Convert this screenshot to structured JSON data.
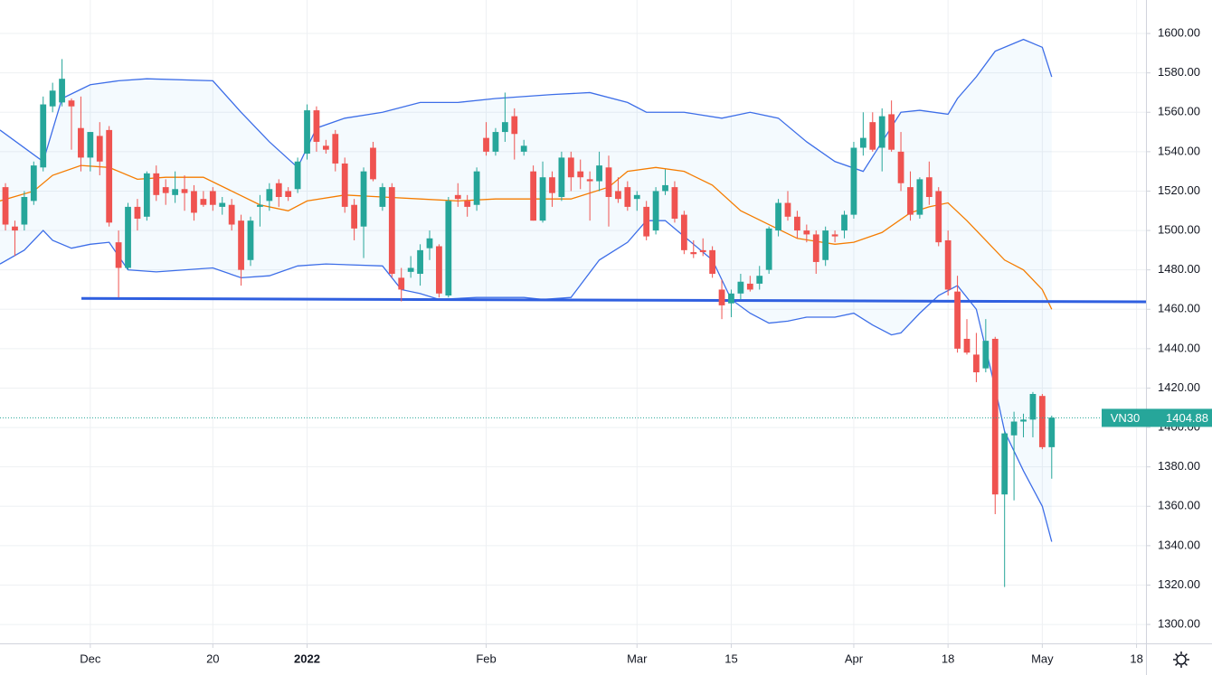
{
  "chart_data": {
    "type": "candlestick",
    "xlim": [
      -0.58,
      121.0
    ],
    "xticks": [
      {
        "value": 9,
        "label": "Dec"
      },
      {
        "value": 22,
        "label": "20"
      },
      {
        "value": 32,
        "label": "2022"
      },
      {
        "value": 51,
        "label": "Feb"
      },
      {
        "value": 67,
        "label": "Mar"
      },
      {
        "value": 77,
        "label": "15"
      },
      {
        "value": 90,
        "label": "Apr"
      },
      {
        "value": 100,
        "label": "18"
      },
      {
        "value": 110,
        "label": "May"
      },
      {
        "value": 120,
        "label": "18"
      }
    ],
    "ylim": [
      1290.4,
      1617
    ],
    "yticks": [
      {
        "value": 1300,
        "label": "1300.00"
      },
      {
        "value": 1320,
        "label": "1320.00"
      },
      {
        "value": 1340,
        "label": "1340.00"
      },
      {
        "value": 1360,
        "label": "1360.00"
      },
      {
        "value": 1380,
        "label": "1380.00"
      },
      {
        "value": 1400,
        "label": "1400.00"
      },
      {
        "value": 1420,
        "label": "1420.00"
      },
      {
        "value": 1440,
        "label": "1440.00"
      },
      {
        "value": 1460,
        "label": "1460.00"
      },
      {
        "value": 1480,
        "label": "1480.00"
      },
      {
        "value": 1500,
        "label": "1500.00"
      },
      {
        "value": 1520,
        "label": "1520.00"
      },
      {
        "value": 1540,
        "label": "1540.00"
      },
      {
        "value": 1560,
        "label": "1560.00"
      },
      {
        "value": 1580,
        "label": "1580.00"
      },
      {
        "value": 1600,
        "label": "1600.00"
      }
    ],
    "grid": true,
    "up_color": "#26a69a",
    "down_color": "#ef5350",
    "candles": {
      "open": [
        1522,
        1502,
        1503,
        1515,
        1532,
        1563,
        1565,
        1566,
        1552,
        1537,
        1548,
        1551,
        1494,
        1481,
        1512,
        1507,
        1529,
        1522,
        1518,
        1521,
        1520,
        1516,
        1520,
        1512,
        1513,
        1505,
        1485,
        1512,
        1515,
        1524,
        1520,
        1521,
        1539,
        1561,
        1543,
        1549,
        1534,
        1513,
        1502,
        1542,
        1512,
        1522,
        1476,
        1479,
        1478,
        1491,
        1492,
        1467,
        1518,
        1515,
        1513,
        1547,
        1540,
        1550,
        1558,
        1540,
        1530,
        1505,
        1527,
        1517,
        1537,
        1530,
        1526,
        1525,
        1532,
        1520,
        1522,
        1516,
        1512,
        1500,
        1520,
        1522,
        1508,
        1489,
        1490,
        1490,
        1470,
        1463,
        1468,
        1473,
        1473,
        1480,
        1500,
        1514,
        1507,
        1500,
        1498,
        1485,
        1498,
        1500,
        1508,
        1542,
        1555,
        1542,
        1559,
        1540,
        1522,
        1508,
        1527,
        1520,
        1495,
        1469,
        1445,
        1437,
        1430,
        1445,
        1366,
        1396,
        1403,
        1404,
        1416,
        1390
      ],
      "high": [
        1524,
        1505,
        1520,
        1535,
        1568,
        1575,
        1587,
        1567,
        1568,
        1550,
        1555,
        1553,
        1500,
        1514,
        1516,
        1530,
        1533,
        1526,
        1530,
        1528,
        1523,
        1520,
        1522,
        1517,
        1516,
        1508,
        1507,
        1518,
        1524,
        1526,
        1522,
        1537,
        1564,
        1563,
        1546,
        1551,
        1537,
        1516,
        1532,
        1545,
        1524,
        1524,
        1481,
        1487,
        1493,
        1500,
        1493,
        1517,
        1524,
        1518,
        1532,
        1555,
        1552,
        1570,
        1562,
        1546,
        1533,
        1535,
        1530,
        1540,
        1540,
        1536,
        1530,
        1540,
        1538,
        1527,
        1525,
        1520,
        1515,
        1522,
        1531,
        1525,
        1510,
        1495,
        1496,
        1492,
        1475,
        1470,
        1478,
        1477,
        1482,
        1502,
        1516,
        1520,
        1510,
        1503,
        1500,
        1502,
        1500,
        1510,
        1545,
        1560,
        1560,
        1562,
        1566,
        1550,
        1530,
        1527,
        1535,
        1522,
        1500,
        1477,
        1455,
        1448,
        1455,
        1446,
        1398,
        1408,
        1407,
        1418,
        1417,
        1406
      ],
      "low": [
        1500,
        1487,
        1500,
        1513,
        1530,
        1560,
        1563,
        1541,
        1530,
        1530,
        1528,
        1502,
        1466,
        1480,
        1500,
        1505,
        1515,
        1513,
        1514,
        1510,
        1505,
        1512,
        1510,
        1508,
        1500,
        1472,
        1482,
        1502,
        1510,
        1512,
        1515,
        1519,
        1536,
        1540,
        1539,
        1530,
        1509,
        1495,
        1486,
        1525,
        1510,
        1476,
        1464,
        1476,
        1472,
        1485,
        1466,
        1466,
        1512,
        1507,
        1510,
        1538,
        1538,
        1545,
        1536,
        1538,
        1505,
        1504,
        1512,
        1515,
        1520,
        1521,
        1505,
        1520,
        1502,
        1514,
        1510,
        1510,
        1495,
        1498,
        1518,
        1504,
        1488,
        1486,
        1487,
        1476,
        1455,
        1456,
        1465,
        1469,
        1470,
        1478,
        1497,
        1505,
        1496,
        1494,
        1478,
        1482,
        1494,
        1496,
        1506,
        1538,
        1540,
        1530,
        1540,
        1520,
        1505,
        1506,
        1513,
        1492,
        1467,
        1438,
        1437,
        1423,
        1428,
        1356,
        1319,
        1363,
        1395,
        1395,
        1389,
        1374
      ],
      "close": [
        1503,
        1500,
        1517,
        1533,
        1564,
        1571,
        1577,
        1563,
        1537,
        1550,
        1535,
        1504,
        1481,
        1512,
        1506,
        1529,
        1518,
        1519,
        1521,
        1519,
        1509,
        1513,
        1513,
        1514,
        1503,
        1480,
        1505,
        1513,
        1521,
        1517,
        1517,
        1535,
        1561,
        1545,
        1541,
        1534,
        1512,
        1501,
        1530,
        1526,
        1522,
        1478,
        1470,
        1481,
        1490,
        1496,
        1468,
        1515,
        1516,
        1512,
        1530,
        1540,
        1550,
        1555,
        1549,
        1543,
        1505,
        1527,
        1519,
        1537,
        1527,
        1527,
        1525,
        1533,
        1517,
        1516,
        1512,
        1518,
        1497,
        1520,
        1523,
        1506,
        1490,
        1488,
        1489,
        1478,
        1462,
        1468,
        1474,
        1470,
        1477,
        1501,
        1514,
        1507,
        1500,
        1498,
        1484,
        1500,
        1497,
        1508,
        1542,
        1547,
        1541,
        1558,
        1541,
        1524,
        1508,
        1526,
        1517,
        1494,
        1470,
        1440,
        1438,
        1428,
        1444,
        1366,
        1397,
        1403,
        1404,
        1417,
        1390,
        1405
      ]
    },
    "lines": [
      {
        "color": "#3d6ee8",
        "x": [
          -0.58,
          4,
          6,
          9,
          12,
          15,
          22,
          25,
          28,
          31,
          33,
          36,
          40,
          44,
          48,
          52,
          58,
          62,
          66,
          68,
          72,
          76,
          79,
          82,
          85,
          88,
          91,
          93,
          95,
          97,
          100,
          101,
          103,
          105,
          108,
          110,
          111
        ],
        "values": [
          1551,
          1535,
          1567,
          1574,
          1576,
          1577,
          1576,
          1560,
          1545,
          1532,
          1552,
          1557,
          1560,
          1565,
          1565,
          1567,
          1569,
          1570,
          1565,
          1560,
          1560,
          1557,
          1560,
          1557,
          1545,
          1535,
          1530,
          1545,
          1560,
          1561,
          1559,
          1567,
          1578,
          1591,
          1597,
          1593,
          1578
        ]
      },
      {
        "color": "#3d6ee8",
        "x": [
          -0.58,
          2,
          4,
          5,
          7,
          9,
          11,
          13,
          16,
          22,
          25,
          28,
          31,
          34,
          40,
          42,
          44,
          46,
          50,
          55,
          57,
          60,
          63,
          66,
          68,
          70,
          72,
          75,
          77,
          79,
          81,
          83,
          85,
          88,
          90,
          92,
          94,
          95,
          97,
          99,
          101,
          103,
          105,
          106,
          108,
          110,
          111
        ],
        "values": [
          1483,
          1490,
          1500,
          1495,
          1491,
          1493,
          1494,
          1480,
          1479,
          1481,
          1476,
          1477,
          1482,
          1483,
          1482,
          1470,
          1468,
          1465,
          1466,
          1466,
          1465,
          1466,
          1485,
          1494,
          1505,
          1505,
          1497,
          1485,
          1465,
          1458,
          1453,
          1454,
          1456,
          1456,
          1458,
          1452,
          1447,
          1448,
          1458,
          1467,
          1472,
          1460,
          1420,
          1398,
          1378,
          1360,
          1342
        ]
      },
      {
        "color": "#f57c00",
        "x": [
          -0.58,
          3,
          5,
          8,
          11,
          14,
          17,
          21,
          24,
          27,
          30,
          32,
          36,
          40,
          44,
          48,
          52,
          56,
          60,
          64,
          66,
          69,
          72,
          75,
          78,
          81,
          84,
          88,
          90,
          93,
          96,
          98,
          100,
          102,
          104,
          106,
          108,
          110,
          111
        ],
        "values": [
          1515,
          1520,
          1528,
          1533,
          1532,
          1526,
          1527,
          1527,
          1520,
          1513,
          1510,
          1515,
          1518,
          1517,
          1516,
          1515,
          1516,
          1516,
          1516,
          1522,
          1530,
          1532,
          1530,
          1523,
          1510,
          1503,
          1496,
          1493,
          1494,
          1499,
          1509,
          1512,
          1514,
          1505,
          1495,
          1485,
          1480,
          1470,
          1460
        ]
      },
      {
        "color": "#2f5fe0",
        "x": [
          8.06,
          121.0
        ],
        "values": [
          1465.5,
          1463.8
        ]
      }
    ],
    "band_color": "#2196f3",
    "last_price": {
      "label": "VN30",
      "value": 1404.88,
      "color": "#26a69a"
    }
  }
}
